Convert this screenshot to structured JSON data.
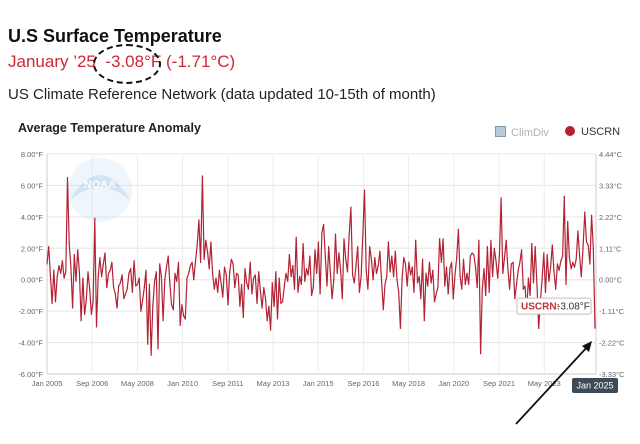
{
  "header": {
    "title": "U.S Surface Temperature",
    "subtitle_month": "January ’25",
    "subtitle_f": "-3.08°F",
    "subtitle_c": "-1.71°C",
    "note": "US Climate Reference Network (data updated 10-15th of month)"
  },
  "chart_data": {
    "type": "line",
    "title": "Average Temperature Anomaly",
    "legend": [
      {
        "name": "ClimDiv",
        "active": false,
        "color": "#b9cbd8"
      },
      {
        "name": "USCRN",
        "active": true,
        "color": "#b22234"
      }
    ],
    "legend_position": "top-right",
    "grid": true,
    "ylim_left": [
      -6,
      8
    ],
    "left_ticks": [
      "8.00°F",
      "6.00°F",
      "4.00°F",
      "2.00°F",
      "0.00°F",
      "-2.00°F",
      "-4.00°F",
      "-6.00°F"
    ],
    "right_ticks": [
      "4.44°C",
      "3.33°C",
      "2.22°C",
      "1.11°C",
      "0.00°C",
      "-1.11°C",
      "-2.22°C",
      "-3.33°C"
    ],
    "x_ticks": [
      "Jan 2005",
      "Sep 2006",
      "May 2008",
      "Jan 2010",
      "Sep 2011",
      "May 2013",
      "Jan 2015",
      "Sep 2016",
      "May 2018",
      "Jan 2020",
      "Sep 2021",
      "May 2023"
    ],
    "x_flag": "Jan 2025",
    "tooltip": {
      "series": "USCRN",
      "value": "-3.08°F"
    },
    "series": [
      {
        "name": "USCRN",
        "color": "#b22234",
        "start": "Jan 2005",
        "end": "Jan 2025",
        "values": [
          1.0,
          2.1,
          0.3,
          -1.5,
          0.6,
          -1.4,
          0.2,
          0.9,
          0.4,
          1.2,
          0.1,
          0.5,
          6.5,
          2.3,
          0.8,
          -1.8,
          1.6,
          -0.1,
          1.9,
          0.5,
          -2.6,
          0.1,
          -2.2,
          -1.3,
          0.5,
          -0.6,
          -2.2,
          -1.4,
          3.9,
          -3.0,
          0.2,
          1.4,
          0.2,
          1.0,
          1.7,
          -0.5,
          0.4,
          0.6,
          1.1,
          -0.5,
          -0.9,
          -1.8,
          -0.4,
          -0.2,
          0.3,
          -1.2,
          -0.9,
          -0.6,
          0.4,
          0.7,
          -0.8,
          1.2,
          -0.4,
          -0.3,
          0.1,
          -2.0,
          -1.3,
          -0.5,
          0.6,
          -4.1,
          -0.3,
          -4.8,
          -1.7,
          -0.1,
          0.5,
          -4.4,
          1.0,
          0.2,
          -2.6,
          0.0,
          0.8,
          1.5,
          -0.3,
          -1.6,
          -1.9,
          0.4,
          -0.1,
          1.1,
          -2.9,
          -1.6,
          -2.3,
          -2.5,
          0.1,
          0.4,
          0.9,
          1.1,
          0.0,
          1.2,
          2.2,
          3.8,
          1.1,
          6.6,
          1.3,
          2.5,
          1.8,
          0.7,
          2.4,
          0.4,
          -0.6,
          0.1,
          -0.8,
          0.6,
          -0.2,
          -1.1,
          0.8,
          0.3,
          -1.6,
          0.5,
          1.3,
          1.0,
          -0.5,
          0.4,
          0.3,
          -1.7,
          -0.3,
          -2.4,
          0.7,
          -0.2,
          -0.6,
          1.1,
          -0.9,
          0.1,
          0.3,
          -1.5,
          0.5,
          -0.7,
          -1.8,
          -0.5,
          -1.2,
          -2.6,
          -1.7,
          -3.2,
          -0.2,
          -1.7,
          0.5,
          -2.5,
          0.1,
          -1.5,
          -1.4,
          -0.4,
          0.4,
          -0.1,
          1.6,
          0.2,
          0.9,
          -0.6,
          2.7,
          -0.8,
          0.2,
          -0.3,
          2.3,
          -0.1,
          0.7,
          0.3,
          1.5,
          -1.0,
          -0.5,
          1.9,
          0.4,
          2.4,
          -0.9,
          3.0,
          3.5,
          1.5,
          -0.4,
          2.1,
          0.4,
          -1.2,
          0.0,
          2.9,
          0.4,
          1.7,
          0.6,
          -1.2,
          2.6,
          1.3,
          0.5,
          2.9,
          4.6,
          0.3,
          -0.2,
          0.9,
          2.1,
          -0.8,
          0.2,
          2.8,
          5.7,
          0.6,
          -0.6,
          2.1,
          1.3,
          0.0,
          1.4,
          0.4,
          0.9,
          1.8,
          -0.1,
          -1.9,
          -0.3,
          0.2,
          2.4,
          0.5,
          1.5,
          0.2,
          1.8,
          0.0,
          -0.8,
          -3.1,
          0.1,
          1.4,
          1.0,
          -0.4,
          1.1,
          0.3,
          0.8,
          -0.8,
          2.5,
          -0.2,
          0.2,
          -1.2,
          1.3,
          -2.6,
          0.4,
          -0.4,
          1.1,
          -0.2,
          0.6,
          -1.4,
          -0.9,
          -0.5,
          2.6,
          1.1,
          2.6,
          -0.4,
          0.8,
          -0.9,
          0.7,
          1.1,
          -1.2,
          0.3,
          1.4,
          3.2,
          0.2,
          -0.6,
          1.3,
          -0.3,
          0.4,
          -0.3,
          1.5,
          1.7,
          1.6,
          0.8,
          -0.5,
          2.5,
          -4.7,
          -0.6,
          0.7,
          -1.0,
          2.1,
          -0.8,
          2.5,
          0.2,
          2.0,
          1.2,
          0.1,
          1.5,
          5.2,
          0.4,
          1.4,
          2.5,
          0.7,
          -0.6,
          1.0,
          1.1,
          -1.2,
          -0.3,
          0.6,
          1.1,
          1.9,
          -0.6,
          -0.4,
          -2.0,
          0.1,
          -1.0,
          2.3,
          -0.2,
          2.1,
          -0.4,
          -3.1,
          -1.4,
          0.0,
          1.7,
          -0.8,
          1.6,
          -0.1,
          0.8,
          2.2,
          0.5,
          -0.6,
          1.0,
          0.6,
          1.2,
          1.5,
          5.3,
          -0.3,
          3.7,
          1.4,
          0.7,
          1.1,
          0.8,
          1.3,
          3.1,
          1.5,
          0.2,
          2.0,
          4.3,
          2.4,
          2.2,
          1.0,
          4.1,
          2.0,
          -3.08
        ]
      }
    ]
  }
}
